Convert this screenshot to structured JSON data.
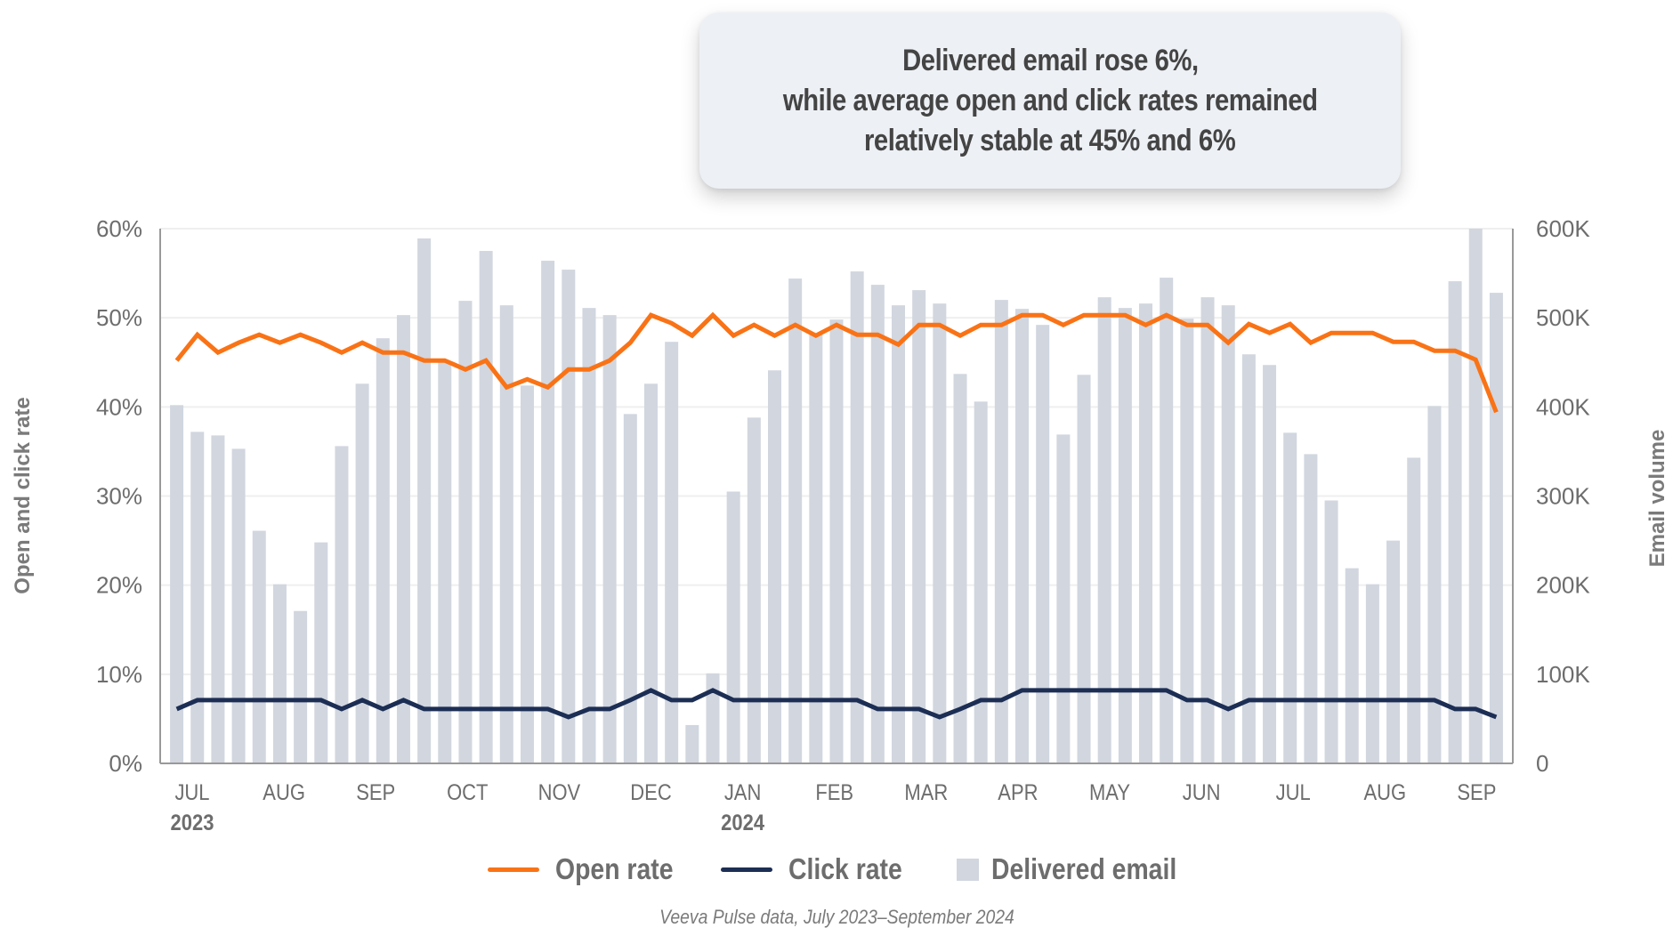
{
  "callout": {
    "lines": [
      "Delivered email rose 6%,",
      "while average open and click rates remained",
      "relatively stable at 45% and 6%"
    ]
  },
  "legend": {
    "open_rate": "Open rate",
    "click_rate": "Click rate",
    "delivered_email": "Delivered email"
  },
  "footnote": "Veeva Pulse data, July 2023–September 2024",
  "colors": {
    "open_rate": "#f97316",
    "click_rate": "#1c2e54",
    "delivered_email": "#d1d6df",
    "grid": "#efefef",
    "axis": "#999999"
  },
  "chart_data": {
    "type": "bar+line",
    "title": "Delivered email rose 6%, while average open and click rates remained relatively stable at 45% and 6%",
    "x_granularity": "weekly",
    "ylabel_left": "Open and click rate",
    "ylabel_right": "Email volume",
    "ylim_left": [
      0,
      60
    ],
    "ylim_right": [
      0,
      600000
    ],
    "yticks_left": [
      "0%",
      "10%",
      "20%",
      "30%",
      "40%",
      "50%",
      "60%"
    ],
    "yticks_right": [
      "0",
      "100K",
      "200K",
      "300K",
      "400K",
      "500K",
      "600K"
    ],
    "month_labels": [
      "JUL",
      "AUG",
      "SEP",
      "OCT",
      "NOV",
      "DEC",
      "JAN",
      "FEB",
      "MAR",
      "APR",
      "MAY",
      "JUN",
      "JUL",
      "AUG",
      "SEP"
    ],
    "year_labels": [
      {
        "label": "2023",
        "month_index": 0
      },
      {
        "label": "2024",
        "month_index": 6
      }
    ],
    "grid": true,
    "legend_position": "bottom",
    "series": [
      {
        "name": "Delivered email",
        "type": "bar",
        "axis": "right",
        "unit": "K",
        "values": [
          402,
          372,
          368,
          353,
          261,
          201,
          171,
          248,
          356,
          426,
          477,
          503,
          589,
          450,
          519,
          575,
          514,
          424,
          564,
          554,
          511,
          503,
          392,
          426,
          473,
          43,
          101,
          305,
          388,
          441,
          544,
          481,
          498,
          552,
          537,
          514,
          531,
          516,
          437,
          406,
          520,
          510,
          492,
          369,
          436,
          523,
          511,
          516,
          545,
          499,
          523,
          514,
          459,
          447,
          371,
          347,
          295,
          219,
          201,
          250,
          343,
          401,
          541,
          600,
          528
        ]
      },
      {
        "name": "Open rate",
        "type": "line",
        "axis": "left",
        "unit": "%",
        "values": [
          45.2,
          48.1,
          46.1,
          47.2,
          48.1,
          47.2,
          48.1,
          47.2,
          46.1,
          47.2,
          46.1,
          46.1,
          45.2,
          45.2,
          44.2,
          45.2,
          42.2,
          43.1,
          42.2,
          44.2,
          44.2,
          45.2,
          47.2,
          50.3,
          49.4,
          48.0,
          50.3,
          48.0,
          49.2,
          48.0,
          49.2,
          48.0,
          49.2,
          48.1,
          48.1,
          47.0,
          49.2,
          49.2,
          48.0,
          49.2,
          49.2,
          50.3,
          50.3,
          49.2,
          50.3,
          50.3,
          50.3,
          49.2,
          50.3,
          49.2,
          49.2,
          47.2,
          49.3,
          48.3,
          49.3,
          47.2,
          48.3,
          48.3,
          48.3,
          47.3,
          47.3,
          46.3,
          46.3,
          45.3,
          39.4
        ]
      },
      {
        "name": "Click rate",
        "type": "line",
        "axis": "left",
        "unit": "%",
        "values": [
          6.1,
          7.1,
          7.1,
          7.1,
          7.1,
          7.1,
          7.1,
          7.1,
          6.1,
          7.1,
          6.1,
          7.1,
          6.1,
          6.1,
          6.1,
          6.1,
          6.1,
          6.1,
          6.1,
          5.2,
          6.1,
          6.1,
          7.1,
          8.2,
          7.1,
          7.1,
          8.2,
          7.1,
          7.1,
          7.1,
          7.1,
          7.1,
          7.1,
          7.1,
          6.1,
          6.1,
          6.1,
          5.2,
          6.1,
          7.1,
          7.1,
          8.2,
          8.2,
          8.2,
          8.2,
          8.2,
          8.2,
          8.2,
          8.2,
          7.1,
          7.1,
          6.1,
          7.1,
          7.1,
          7.1,
          7.1,
          7.1,
          7.1,
          7.1,
          7.1,
          7.1,
          7.1,
          6.1,
          6.1,
          5.2
        ]
      }
    ]
  }
}
